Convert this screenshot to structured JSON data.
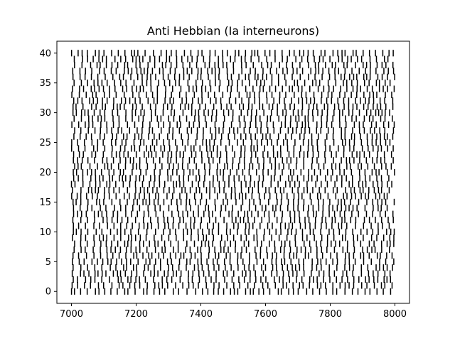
{
  "chart_data": {
    "type": "scatter",
    "marker": "vertical-line",
    "title": "Anti Hebbian (Ia interneurons)",
    "xlabel": "",
    "ylabel": "",
    "xlim": [
      0,
      1
    ],
    "ylim": [
      -2,
      42
    ],
    "xticks": [
      7000,
      7200,
      7400,
      7600,
      7800,
      8000
    ],
    "yticks": [
      0,
      5,
      10,
      15,
      20,
      25,
      30,
      35,
      40
    ],
    "grid": false,
    "legend": "none",
    "spike_color": "#000000",
    "data_x_range": [
      7000,
      8000
    ],
    "neurons": 41,
    "seed": 12345,
    "series": [
      {
        "name": "",
        "x": [],
        "y": []
      }
    ]
  }
}
